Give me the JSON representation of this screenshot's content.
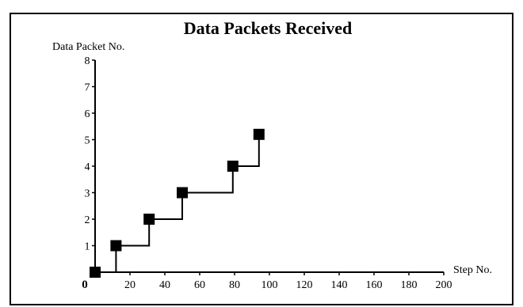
{
  "chart_data": {
    "type": "line",
    "title": "Data Packets Received",
    "xlabel": "Step No.",
    "ylabel": "Data Packet No.",
    "origin_label": "0",
    "xlim": [
      0,
      200
    ],
    "ylim": [
      0,
      8
    ],
    "x_ticks": [
      "20",
      "40",
      "60",
      "80",
      "100",
      "120",
      "140",
      "160",
      "180",
      "200"
    ],
    "y_ticks": [
      "1",
      "2",
      "3",
      "4",
      "5",
      "6",
      "7",
      "8"
    ],
    "step_line": true,
    "marker": "square",
    "grid": false,
    "series": [
      {
        "x": [
          0,
          12,
          31,
          50,
          79,
          94
        ],
        "y": [
          0,
          1,
          2,
          3,
          4,
          5.2
        ]
      }
    ]
  }
}
